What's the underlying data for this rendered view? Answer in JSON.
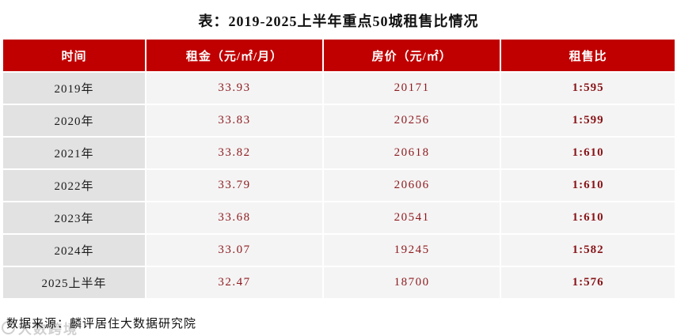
{
  "title": "表：2019-2025上半年重点50城租售比情况",
  "table": {
    "headers": [
      "时间",
      "租金（元/㎡/月）",
      "房价（元/㎡）",
      "租售比"
    ],
    "rows": [
      {
        "period": "2019年",
        "rent": "33.93",
        "price": "20171",
        "ratio": "1:595"
      },
      {
        "period": "2020年",
        "rent": "33.83",
        "price": "20256",
        "ratio": "1:599"
      },
      {
        "period": "2021年",
        "rent": "33.82",
        "price": "20618",
        "ratio": "1:610"
      },
      {
        "period": "2022年",
        "rent": "33.79",
        "price": "20606",
        "ratio": "1:610"
      },
      {
        "period": "2023年",
        "rent": "33.68",
        "price": "20541",
        "ratio": "1:610"
      },
      {
        "period": "2024年",
        "rent": "33.07",
        "price": "19245",
        "ratio": "1:582"
      },
      {
        "period": "2025上半年",
        "rent": "32.47",
        "price": "18700",
        "ratio": "1:576"
      }
    ]
  },
  "footer": {
    "source": "数据来源：麟评居住大数据研究院"
  },
  "watermark": {
    "text": "大数跨境"
  },
  "colors": {
    "header_bg": "#c00000",
    "header_text": "#ffffff",
    "period_bg": "#e2e2e2",
    "cell_bg": "#f5f4f4",
    "value_text": "#8b1a1e",
    "title_text": "#111111"
  },
  "chart_data": {
    "type": "table",
    "title": "表：2019-2025上半年重点50城租售比情况",
    "columns": [
      "时间",
      "租金（元/㎡/月）",
      "房价（元/㎡）",
      "租售比"
    ],
    "rows": [
      [
        "2019年",
        33.93,
        20171,
        "1:595"
      ],
      [
        "2020年",
        33.83,
        20256,
        "1:599"
      ],
      [
        "2021年",
        33.82,
        20618,
        "1:610"
      ],
      [
        "2022年",
        33.79,
        20606,
        "1:610"
      ],
      [
        "2023年",
        33.68,
        20541,
        "1:610"
      ],
      [
        "2024年",
        33.07,
        19245,
        "1:582"
      ],
      [
        "2025上半年",
        32.47,
        18700,
        "1:576"
      ]
    ],
    "notes": "数据来源：麟评居住大数据研究院"
  }
}
